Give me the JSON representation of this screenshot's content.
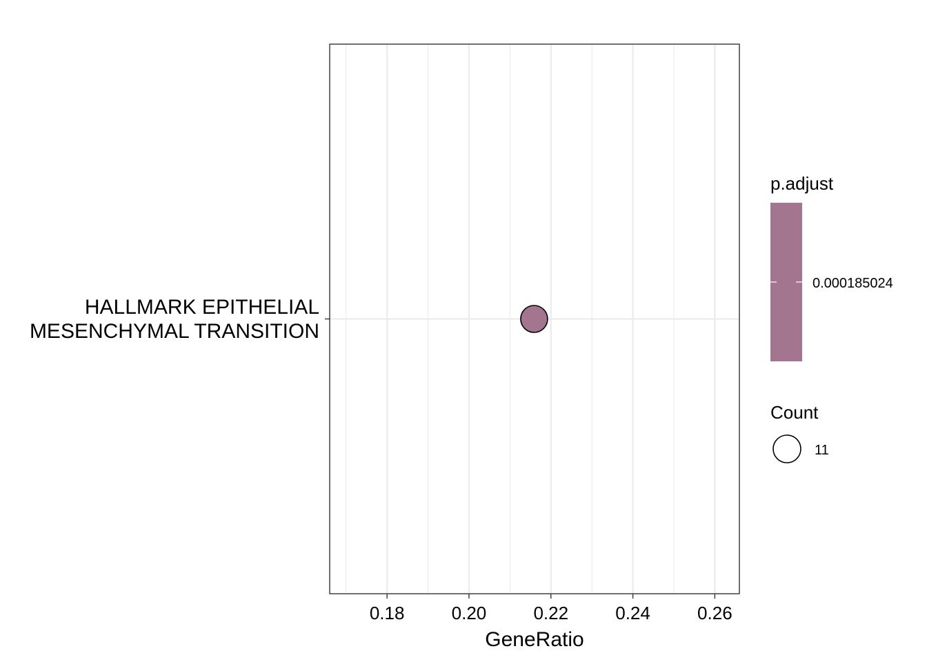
{
  "chart_data": {
    "type": "scatter",
    "xlabel": "GeneRatio",
    "xlim": [
      0.166,
      0.266
    ],
    "x_ticks": [
      0.18,
      0.2,
      0.22,
      0.24,
      0.26
    ],
    "x_tick_labels": [
      "0.18",
      "0.20",
      "0.22",
      "0.24",
      "0.26"
    ],
    "categories": [
      [
        "HALLMARK EPITHELIAL",
        "MESENCHYMAL TRANSITION"
      ]
    ],
    "points": [
      {
        "category_index": 0,
        "x": 0.2159,
        "count": 11,
        "p_adjust": 0.000185024
      }
    ],
    "grid": true,
    "point_color": "#a3758f",
    "legend": {
      "placement": "right",
      "color_title": "p.adjust",
      "color_label": "0.000185024",
      "color_fill": "#a3758f",
      "size_title": "Count",
      "size_label": "11"
    }
  }
}
